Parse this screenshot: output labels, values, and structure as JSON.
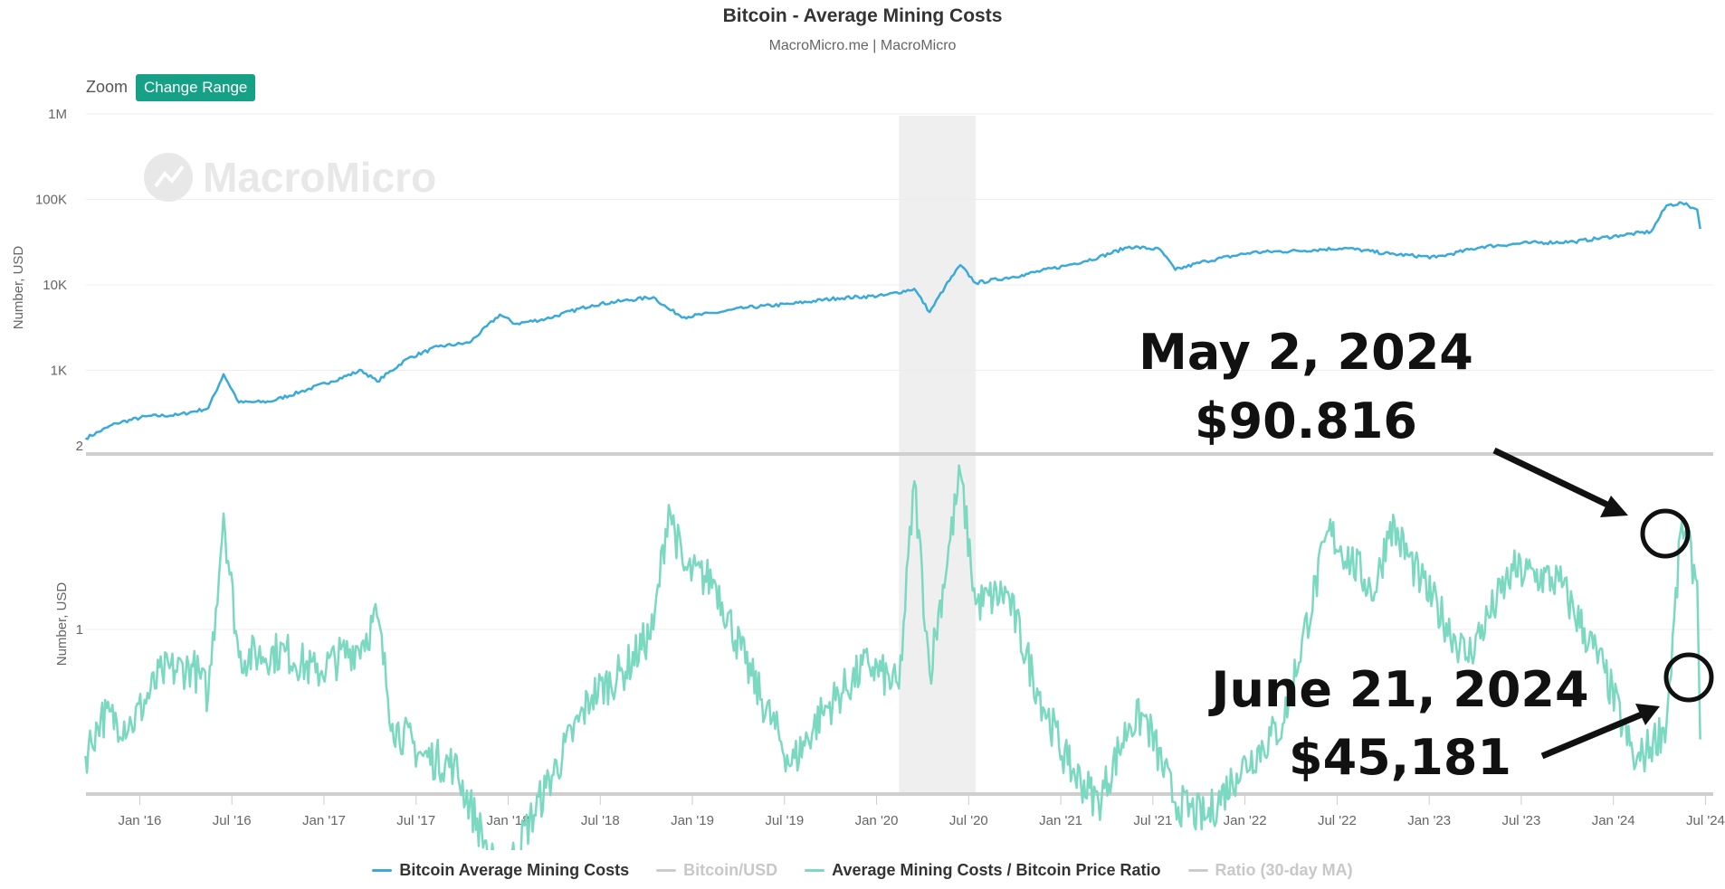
{
  "header": {
    "title": "Bitcoin - Average Mining Costs",
    "subtitle": "MacroMicro.me | MacroMicro"
  },
  "controls": {
    "zoom_label": "Zoom",
    "change_range_label": "Change Range"
  },
  "watermark": "MacroMicro",
  "annotations": [
    {
      "line1": "May 2, 2024",
      "line2": "$90.816"
    },
    {
      "line1": "June 21, 2024",
      "line2": "$45,181"
    }
  ],
  "colors": {
    "mining_cost": "#3aaad8",
    "ratio": "#7ad9c0",
    "hidden_series": "#cccccc",
    "shade": "#efefef",
    "accent_button": "#16a085"
  },
  "chart_data": {
    "type": "line",
    "x_ticks": [
      "Jan '16",
      "Jul '16",
      "Jan '17",
      "Jul '17",
      "Jan '18",
      "Jul '18",
      "Jan '19",
      "Jul '19",
      "Jan '20",
      "Jul '20",
      "Jan '21",
      "Jul '21",
      "Jan '22",
      "Jul '22",
      "Jan '23",
      "Jul '23",
      "Jan '24",
      "Jul '24"
    ],
    "x_range": [
      "2015-09",
      "2024-07"
    ],
    "shaded_range": [
      "2020-02",
      "2020-07"
    ],
    "panels": [
      {
        "y_axis_title": "Number, USD",
        "y_scale": "log",
        "y_ticks": [
          "1M",
          "100K",
          "10K",
          "1K"
        ],
        "series": [
          {
            "name": "Bitcoin Average Mining Costs",
            "visible": true,
            "points": [
              [
                "2015-09",
                160
              ],
              [
                "2015-11",
                240
              ],
              [
                "2016-01",
                290
              ],
              [
                "2016-03",
                300
              ],
              [
                "2016-05",
                360
              ],
              [
                "2016-06",
                900
              ],
              [
                "2016-07",
                420
              ],
              [
                "2016-09",
                430
              ],
              [
                "2016-11",
                560
              ],
              [
                "2017-01",
                740
              ],
              [
                "2017-03",
                1000
              ],
              [
                "2017-04",
                740
              ],
              [
                "2017-06",
                1380
              ],
              [
                "2017-08",
                1900
              ],
              [
                "2017-10",
                2100
              ],
              [
                "2017-12",
                4500
              ],
              [
                "2018-01",
                3500
              ],
              [
                "2018-03",
                4000
              ],
              [
                "2018-06",
                5800
              ],
              [
                "2018-08",
                6500
              ],
              [
                "2018-10",
                7200
              ],
              [
                "2018-11",
                5200
              ],
              [
                "2018-12",
                4200
              ],
              [
                "2019-02",
                4700
              ],
              [
                "2019-04",
                5400
              ],
              [
                "2019-07",
                6000
              ],
              [
                "2019-10",
                7000
              ],
              [
                "2020-01",
                7500
              ],
              [
                "2020-03",
                9000
              ],
              [
                "2020-04",
                4800
              ],
              [
                "2020-05",
                9500
              ],
              [
                "2020-06",
                17000
              ],
              [
                "2020-07",
                10500
              ],
              [
                "2020-10",
                13000
              ],
              [
                "2021-01",
                17000
              ],
              [
                "2021-03",
                21000
              ],
              [
                "2021-05",
                28000
              ],
              [
                "2021-07",
                26000
              ],
              [
                "2021-08",
                15000
              ],
              [
                "2021-10",
                19000
              ],
              [
                "2022-01",
                24000
              ],
              [
                "2022-04",
                25000
              ],
              [
                "2022-07",
                27000
              ],
              [
                "2022-10",
                23000
              ],
              [
                "2023-01",
                21000
              ],
              [
                "2023-04",
                28000
              ],
              [
                "2023-07",
                31000
              ],
              [
                "2023-10",
                32000
              ],
              [
                "2024-01",
                38000
              ],
              [
                "2024-03",
                42000
              ],
              [
                "2024-04",
                85000
              ],
              [
                "2024-05",
                90816
              ],
              [
                "2024-06",
                76000
              ],
              [
                "2024-06-21",
                45181
              ]
            ]
          },
          {
            "name": "Bitcoin/USD",
            "visible": false,
            "points": []
          }
        ]
      },
      {
        "y_axis_title": "Number, USD",
        "y_scale": "log",
        "y_ticks": [
          "2",
          "1"
        ],
        "series": [
          {
            "name": "Average Mining Costs / Bitcoin Price Ratio",
            "visible": true,
            "points": [
              [
                "2015-09",
                0.62
              ],
              [
                "2015-10",
                0.72
              ],
              [
                "2015-12",
                0.7
              ],
              [
                "2016-02",
                0.85
              ],
              [
                "2016-04",
                0.87
              ],
              [
                "2016-05",
                0.78
              ],
              [
                "2016-06",
                1.55
              ],
              [
                "2016-07",
                0.9
              ],
              [
                "2016-10",
                0.92
              ],
              [
                "2016-12",
                0.85
              ],
              [
                "2017-03",
                0.95
              ],
              [
                "2017-04",
                1.05
              ],
              [
                "2017-05",
                0.7
              ],
              [
                "2017-07",
                0.62
              ],
              [
                "2017-09",
                0.6
              ],
              [
                "2017-11",
                0.45
              ],
              [
                "2017-12",
                0.38
              ],
              [
                "2018-03",
                0.55
              ],
              [
                "2018-06",
                0.78
              ],
              [
                "2018-08",
                0.85
              ],
              [
                "2018-10",
                1.0
              ],
              [
                "2018-11",
                1.6
              ],
              [
                "2018-12",
                1.25
              ],
              [
                "2019-02",
                1.2
              ],
              [
                "2019-04",
                0.88
              ],
              [
                "2019-07",
                0.6
              ],
              [
                "2019-09",
                0.73
              ],
              [
                "2019-12",
                0.88
              ],
              [
                "2020-02",
                0.8
              ],
              [
                "2020-03",
                1.75
              ],
              [
                "2020-04",
                0.85
              ],
              [
                "2020-06",
                1.8
              ],
              [
                "2020-07",
                1.1
              ],
              [
                "2020-09",
                1.15
              ],
              [
                "2020-11",
                0.8
              ],
              [
                "2021-01",
                0.6
              ],
              [
                "2021-03",
                0.52
              ],
              [
                "2021-05",
                0.7
              ],
              [
                "2021-06",
                0.72
              ],
              [
                "2021-08",
                0.52
              ],
              [
                "2021-10",
                0.49
              ],
              [
                "2021-12",
                0.58
              ],
              [
                "2022-03",
                0.7
              ],
              [
                "2022-06",
                1.45
              ],
              [
                "2022-09",
                1.15
              ],
              [
                "2022-10",
                1.5
              ],
              [
                "2022-12",
                1.2
              ],
              [
                "2023-03",
                0.9
              ],
              [
                "2023-06",
                1.25
              ],
              [
                "2023-09",
                1.2
              ],
              [
                "2023-12",
                0.85
              ],
              [
                "2024-02",
                0.6
              ],
              [
                "2024-04",
                0.7
              ],
              [
                "2024-05",
                1.5
              ],
              [
                "2024-06",
                1.2
              ],
              [
                "2024-06-21",
                0.66
              ]
            ]
          },
          {
            "name": "Ratio (30-day MA)",
            "visible": false,
            "points": []
          }
        ]
      }
    ]
  },
  "legend": [
    {
      "label": "Bitcoin Average Mining Costs",
      "active": true
    },
    {
      "label": "Bitcoin/USD",
      "active": false
    },
    {
      "label": "Average Mining Costs / Bitcoin Price Ratio",
      "active": true
    },
    {
      "label": "Ratio (30-day MA)",
      "active": false
    }
  ]
}
